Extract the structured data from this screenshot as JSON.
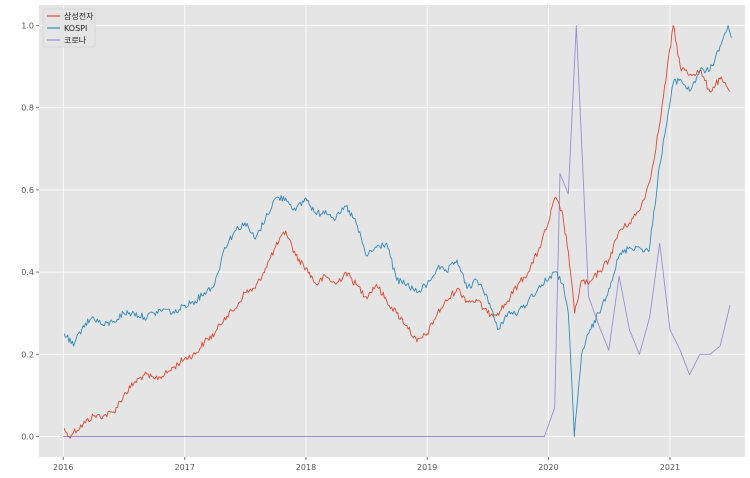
{
  "chart_data": {
    "type": "line",
    "title": "",
    "xlabel": "",
    "ylabel": "",
    "xlim": [
      "2015-10-20",
      "2021-08-15"
    ],
    "ylim": [
      -0.05,
      1.05
    ],
    "x_ticks": [
      "2016",
      "2017",
      "2018",
      "2019",
      "2020",
      "2021"
    ],
    "y_ticks": [
      "0.0",
      "0.2",
      "0.4",
      "0.6",
      "0.8",
      "1.0"
    ],
    "grid": true,
    "legend_position": "top-left",
    "colors": {
      "background": "#e5e5e5",
      "grid": "#ffffff",
      "samsung": "#e24a33",
      "kospi": "#348abd",
      "corona": "#988ed5"
    },
    "series": [
      {
        "name": "삼성전자",
        "color": "#e24a33",
        "points": [
          [
            "2016-01-04",
            0.02
          ],
          [
            "2016-01-15",
            0.0
          ],
          [
            "2016-02-01",
            0.01
          ],
          [
            "2016-03-01",
            0.03
          ],
          [
            "2016-04-01",
            0.05
          ],
          [
            "2016-05-01",
            0.05
          ],
          [
            "2016-06-01",
            0.06
          ],
          [
            "2016-07-01",
            0.1
          ],
          [
            "2016-08-01",
            0.13
          ],
          [
            "2016-09-01",
            0.15
          ],
          [
            "2016-10-01",
            0.14
          ],
          [
            "2016-11-01",
            0.15
          ],
          [
            "2016-12-01",
            0.17
          ],
          [
            "2017-01-01",
            0.19
          ],
          [
            "2017-02-01",
            0.2
          ],
          [
            "2017-03-01",
            0.23
          ],
          [
            "2017-04-01",
            0.25
          ],
          [
            "2017-05-01",
            0.29
          ],
          [
            "2017-06-01",
            0.31
          ],
          [
            "2017-07-01",
            0.35
          ],
          [
            "2017-08-01",
            0.36
          ],
          [
            "2017-09-01",
            0.41
          ],
          [
            "2017-10-01",
            0.46
          ],
          [
            "2017-11-01",
            0.5
          ],
          [
            "2017-12-01",
            0.44
          ],
          [
            "2018-01-01",
            0.41
          ],
          [
            "2018-02-01",
            0.37
          ],
          [
            "2018-03-01",
            0.39
          ],
          [
            "2018-04-01",
            0.37
          ],
          [
            "2018-05-01",
            0.4
          ],
          [
            "2018-06-01",
            0.37
          ],
          [
            "2018-07-01",
            0.34
          ],
          [
            "2018-08-01",
            0.37
          ],
          [
            "2018-09-01",
            0.33
          ],
          [
            "2018-10-01",
            0.3
          ],
          [
            "2018-11-01",
            0.27
          ],
          [
            "2018-12-01",
            0.23
          ],
          [
            "2019-01-01",
            0.25
          ],
          [
            "2019-02-01",
            0.3
          ],
          [
            "2019-03-01",
            0.33
          ],
          [
            "2019-04-01",
            0.36
          ],
          [
            "2019-05-01",
            0.33
          ],
          [
            "2019-06-01",
            0.33
          ],
          [
            "2019-07-01",
            0.3
          ],
          [
            "2019-08-01",
            0.3
          ],
          [
            "2019-09-01",
            0.33
          ],
          [
            "2019-10-01",
            0.37
          ],
          [
            "2019-11-01",
            0.4
          ],
          [
            "2019-12-01",
            0.45
          ],
          [
            "2020-01-01",
            0.52
          ],
          [
            "2020-01-20",
            0.58
          ],
          [
            "2020-02-10",
            0.55
          ],
          [
            "2020-03-01",
            0.45
          ],
          [
            "2020-03-20",
            0.3
          ],
          [
            "2020-04-10",
            0.38
          ],
          [
            "2020-05-01",
            0.37
          ],
          [
            "2020-06-01",
            0.4
          ],
          [
            "2020-07-01",
            0.43
          ],
          [
            "2020-08-01",
            0.5
          ],
          [
            "2020-09-01",
            0.52
          ],
          [
            "2020-10-01",
            0.55
          ],
          [
            "2020-11-01",
            0.62
          ],
          [
            "2020-12-01",
            0.76
          ],
          [
            "2021-01-11",
            1.0
          ],
          [
            "2021-02-01",
            0.9
          ],
          [
            "2021-03-01",
            0.88
          ],
          [
            "2021-04-01",
            0.89
          ],
          [
            "2021-05-01",
            0.84
          ],
          [
            "2021-06-01",
            0.87
          ],
          [
            "2021-07-01",
            0.84
          ]
        ]
      },
      {
        "name": "KOSPI",
        "color": "#348abd",
        "points": [
          [
            "2016-01-04",
            0.25
          ],
          [
            "2016-02-01",
            0.22
          ],
          [
            "2016-03-01",
            0.27
          ],
          [
            "2016-04-01",
            0.29
          ],
          [
            "2016-05-01",
            0.27
          ],
          [
            "2016-06-01",
            0.28
          ],
          [
            "2016-07-01",
            0.3
          ],
          [
            "2016-08-01",
            0.3
          ],
          [
            "2016-09-01",
            0.29
          ],
          [
            "2016-10-01",
            0.3
          ],
          [
            "2016-11-01",
            0.31
          ],
          [
            "2016-12-01",
            0.3
          ],
          [
            "2017-01-01",
            0.32
          ],
          [
            "2017-02-01",
            0.33
          ],
          [
            "2017-03-01",
            0.35
          ],
          [
            "2017-04-01",
            0.37
          ],
          [
            "2017-05-01",
            0.46
          ],
          [
            "2017-06-01",
            0.5
          ],
          [
            "2017-07-01",
            0.52
          ],
          [
            "2017-08-01",
            0.48
          ],
          [
            "2017-09-01",
            0.53
          ],
          [
            "2017-10-01",
            0.58
          ],
          [
            "2017-11-01",
            0.58
          ],
          [
            "2017-12-01",
            0.55
          ],
          [
            "2018-01-01",
            0.58
          ],
          [
            "2018-02-01",
            0.54
          ],
          [
            "2018-03-01",
            0.55
          ],
          [
            "2018-04-01",
            0.53
          ],
          [
            "2018-05-01",
            0.56
          ],
          [
            "2018-06-01",
            0.52
          ],
          [
            "2018-07-01",
            0.44
          ],
          [
            "2018-08-01",
            0.46
          ],
          [
            "2018-09-01",
            0.47
          ],
          [
            "2018-10-01",
            0.38
          ],
          [
            "2018-11-01",
            0.37
          ],
          [
            "2018-12-01",
            0.35
          ],
          [
            "2019-01-01",
            0.37
          ],
          [
            "2019-02-01",
            0.41
          ],
          [
            "2019-03-01",
            0.4
          ],
          [
            "2019-04-01",
            0.43
          ],
          [
            "2019-05-01",
            0.36
          ],
          [
            "2019-06-01",
            0.38
          ],
          [
            "2019-07-01",
            0.34
          ],
          [
            "2019-08-01",
            0.26
          ],
          [
            "2019-09-01",
            0.3
          ],
          [
            "2019-10-01",
            0.3
          ],
          [
            "2019-11-01",
            0.33
          ],
          [
            "2019-12-01",
            0.36
          ],
          [
            "2020-01-20",
            0.4
          ],
          [
            "2020-02-15",
            0.37
          ],
          [
            "2020-03-01",
            0.3
          ],
          [
            "2020-03-19",
            0.0
          ],
          [
            "2020-04-10",
            0.2
          ],
          [
            "2020-05-01",
            0.25
          ],
          [
            "2020-06-01",
            0.3
          ],
          [
            "2020-07-01",
            0.36
          ],
          [
            "2020-08-01",
            0.44
          ],
          [
            "2020-09-01",
            0.46
          ],
          [
            "2020-10-01",
            0.46
          ],
          [
            "2020-10-30",
            0.45
          ],
          [
            "2020-12-01",
            0.66
          ],
          [
            "2021-01-11",
            0.86
          ],
          [
            "2021-02-01",
            0.87
          ],
          [
            "2021-03-01",
            0.84
          ],
          [
            "2021-04-01",
            0.89
          ],
          [
            "2021-05-01",
            0.89
          ],
          [
            "2021-06-01",
            0.95
          ],
          [
            "2021-06-25",
            1.0
          ],
          [
            "2021-07-05",
            0.97
          ]
        ]
      },
      {
        "name": "코로나",
        "color": "#988ed5",
        "points": [
          [
            "2016-01-01",
            0.0
          ],
          [
            "2019-12-20",
            0.0
          ],
          [
            "2020-01-20",
            0.07
          ],
          [
            "2020-02-05",
            0.64
          ],
          [
            "2020-03-01",
            0.59
          ],
          [
            "2020-03-25",
            1.0
          ],
          [
            "2020-05-01",
            0.34
          ],
          [
            "2020-06-01",
            0.27
          ],
          [
            "2020-07-01",
            0.21
          ],
          [
            "2020-08-01",
            0.39
          ],
          [
            "2020-09-01",
            0.26
          ],
          [
            "2020-10-01",
            0.2
          ],
          [
            "2020-11-01",
            0.29
          ],
          [
            "2020-12-01",
            0.47
          ],
          [
            "2021-01-01",
            0.26
          ],
          [
            "2021-02-01",
            0.21
          ],
          [
            "2021-03-01",
            0.15
          ],
          [
            "2021-04-01",
            0.2
          ],
          [
            "2021-05-01",
            0.2
          ],
          [
            "2021-06-01",
            0.22
          ],
          [
            "2021-07-01",
            0.32
          ]
        ]
      }
    ]
  }
}
